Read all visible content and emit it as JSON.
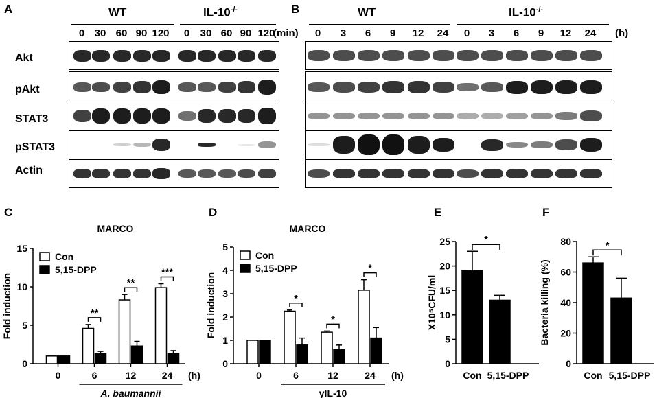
{
  "panels": {
    "A": {
      "letter": "A",
      "groups": [
        "WT",
        "IL-10"
      ],
      "group_sup": "-/-",
      "timepoints": [
        "0",
        "30",
        "60",
        "90",
        "120",
        "0",
        "30",
        "60",
        "90",
        "120"
      ],
      "unit": "(min)"
    },
    "B": {
      "letter": "B",
      "groups": [
        "WT",
        "IL-10"
      ],
      "group_sup": "-/-",
      "timepoints": [
        "0",
        "3",
        "6",
        "9",
        "12",
        "24",
        "0",
        "3",
        "6",
        "9",
        "12",
        "24"
      ],
      "unit": "(h)"
    },
    "row_labels": [
      "Akt",
      "pAkt",
      "STAT3",
      "pSTAT3",
      "Actin"
    ],
    "C": {
      "letter": "C"
    },
    "D": {
      "letter": "D"
    },
    "E": {
      "letter": "E"
    },
    "F": {
      "letter": "F"
    }
  },
  "chart_data": [
    {
      "panel": "C",
      "type": "bar",
      "title": "MARCO",
      "ylabel": "Fold induction",
      "ylim": [
        0,
        15
      ],
      "yticks": [
        "0",
        "5",
        "10",
        "15"
      ],
      "categories": [
        "0",
        "6",
        "12",
        "24"
      ],
      "xunit": "(h)",
      "xgroup_label": "A. baumannii",
      "legend": [
        "Con",
        "5,15-DPP"
      ],
      "series": [
        {
          "name": "Con",
          "values": [
            1.0,
            4.6,
            8.3,
            9.9
          ],
          "errors": [
            0,
            0.5,
            0.7,
            0.5
          ],
          "color": "#ffffff"
        },
        {
          "name": "5,15-DPP",
          "values": [
            1.0,
            1.3,
            2.3,
            1.3
          ],
          "errors": [
            0,
            0.3,
            0.6,
            0.4
          ],
          "color": "#000000"
        }
      ],
      "significance": [
        {
          "category": "6",
          "label": "**"
        },
        {
          "category": "12",
          "label": "**"
        },
        {
          "category": "24",
          "label": "***"
        }
      ]
    },
    {
      "panel": "D",
      "type": "bar",
      "title": "MARCO",
      "ylabel": "Fold induction",
      "ylim": [
        0,
        5
      ],
      "yticks": [
        "0",
        "1",
        "2",
        "3",
        "4",
        "5"
      ],
      "categories": [
        "0",
        "6",
        "12",
        "24"
      ],
      "xunit": "(h)",
      "xgroup_label": "γIL-10",
      "legend": [
        "Con",
        "5,15-DPP"
      ],
      "series": [
        {
          "name": "Con",
          "values": [
            1.0,
            2.25,
            1.35,
            3.15
          ],
          "errors": [
            0,
            0.05,
            0.05,
            0.45
          ],
          "color": "#ffffff"
        },
        {
          "name": "5,15-DPP",
          "values": [
            1.0,
            0.8,
            0.6,
            1.1
          ],
          "errors": [
            0,
            0.3,
            0.2,
            0.45
          ],
          "color": "#000000"
        }
      ],
      "significance": [
        {
          "category": "6",
          "label": "*"
        },
        {
          "category": "12",
          "label": "*"
        },
        {
          "category": "24",
          "label": "*"
        }
      ]
    },
    {
      "panel": "E",
      "type": "bar",
      "title": "",
      "ylabel": "X10⁵CFU/ml",
      "ylim": [
        0,
        25
      ],
      "yticks": [
        "0",
        "5",
        "10",
        "15",
        "20",
        "25"
      ],
      "categories": [
        "Con",
        "5,15-DPP"
      ],
      "values": [
        19.0,
        13.0
      ],
      "errors": [
        4.0,
        1.0
      ],
      "color": "#000000",
      "significance": [
        {
          "label": "*"
        }
      ]
    },
    {
      "panel": "F",
      "type": "bar",
      "title": "",
      "ylabel": "Bacteria killing (%)",
      "ylim": [
        0,
        80
      ],
      "yticks": [
        "0",
        "20",
        "40",
        "60",
        "80"
      ],
      "categories": [
        "Con",
        "5,15-DPP"
      ],
      "values": [
        66.0,
        43.0
      ],
      "errors": [
        4.0,
        13.0
      ],
      "color": "#000000",
      "significance": [
        {
          "label": "*"
        }
      ]
    }
  ]
}
